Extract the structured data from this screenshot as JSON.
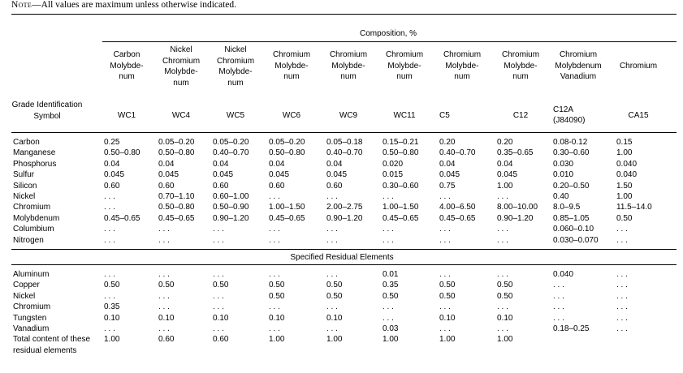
{
  "note": {
    "prefix": "Note",
    "text": "—All values are maximum unless otherwise indicated."
  },
  "composition_header": "Composition, %",
  "grade_label": "Grade Identification Symbol",
  "columns": [
    {
      "type": "Carbon Molybde-num",
      "grade": "WC1"
    },
    {
      "type": "Nickel Chromium Molybde-num",
      "grade": "WC4"
    },
    {
      "type": "Nickel Chromium Molybde-num",
      "grade": "WC5"
    },
    {
      "type": "Chromium Molybde-num",
      "grade": "WC6"
    },
    {
      "type": "Chromium Molybde-num",
      "grade": "WC9"
    },
    {
      "type": "Chromium Molybde-num",
      "grade": "WC11"
    },
    {
      "type": "Chromium Molybde-num",
      "grade": "C5"
    },
    {
      "type": "Chromium Molybde-num",
      "grade": "C12"
    },
    {
      "type": "Chromium Molybdenum Vanadium",
      "grade": "C12A (J84090)"
    },
    {
      "type": "Chromium",
      "grade": "CA15"
    }
  ],
  "elements": [
    {
      "name": "Carbon",
      "values": [
        "0.25",
        "0.05–0.20",
        "0.05–0.20",
        "0.05–0.20",
        "0.05–0.18",
        "0.15–0.21",
        "0.20",
        "0.20",
        "0.08-0.12",
        "0.15"
      ]
    },
    {
      "name": "Manganese",
      "values": [
        "0.50–0.80",
        "0.50–0.80",
        "0.40–0.70",
        "0.50–0.80",
        "0.40–0.70",
        "0.50–0.80",
        "0.40–0.70",
        "0.35–0.65",
        "0.30–0.60",
        "1.00"
      ]
    },
    {
      "name": "Phosphorus",
      "values": [
        "0.04",
        "0.04",
        "0.04",
        "0.04",
        "0.04",
        "0.020",
        "0.04",
        "0.04",
        "0.030",
        "0.040"
      ]
    },
    {
      "name": "Sulfur",
      "values": [
        "0.045",
        "0.045",
        "0.045",
        "0.045",
        "0.045",
        "0.015",
        "0.045",
        "0.045",
        "0.010",
        "0.040"
      ]
    },
    {
      "name": "Silicon",
      "values": [
        "0.60",
        "0.60",
        "0.60",
        "0.60",
        "0.60",
        "0.30–0.60",
        "0.75",
        "1.00",
        "0.20–0.50",
        "1.50"
      ]
    },
    {
      "name": "Nickel",
      "values": [
        ". . .",
        "0.70–1.10",
        "0.60–1.00",
        ". . .",
        ". . .",
        ". . .",
        ". . .",
        ". . .",
        "0.40",
        "1.00"
      ]
    },
    {
      "name": "Chromium",
      "values": [
        ". . .",
        "0.50–0.80",
        "0.50–0.90",
        "1.00–1.50",
        "2.00–2.75",
        "1.00–1.50",
        "4.00–6.50",
        "8.00–10.00",
        "8.0–9.5",
        "11.5–14.0"
      ]
    },
    {
      "name": "Molybdenum",
      "values": [
        "0.45–0.65",
        "0.45–0.65",
        "0.90–1.20",
        "0.45–0.65",
        "0.90–1.20",
        "0.45–0.65",
        "0.45–0.65",
        "0.90–1.20",
        "0.85–1.05",
        "0.50"
      ]
    },
    {
      "name": "Columbium",
      "values": [
        ". . .",
        ". . .",
        ". . .",
        ". . .",
        ". . .",
        ". . .",
        ". . .",
        ". . .",
        "0.060–0.10",
        ". . ."
      ]
    },
    {
      "name": "Nitrogen",
      "values": [
        ". . .",
        ". . .",
        ". . .",
        ". . .",
        ". . .",
        ". . .",
        ". . .",
        ". . .",
        "0.030–0.070",
        ". . ."
      ]
    }
  ],
  "residual_header": "Specified Residual Elements",
  "residuals": [
    {
      "name": "Aluminum",
      "values": [
        ". . .",
        ". . .",
        ". . .",
        ". . .",
        ". . .",
        "0.01",
        ". . .",
        ". . .",
        "0.040",
        ". . ."
      ]
    },
    {
      "name": "Copper",
      "values": [
        "0.50",
        "0.50",
        "0.50",
        "0.50",
        "0.50",
        "0.35",
        "0.50",
        "0.50",
        ". . .",
        ". . ."
      ]
    },
    {
      "name": "Nickel",
      "values": [
        ". . .",
        ". . .",
        ". . .",
        "0.50",
        "0.50",
        "0.50",
        "0.50",
        "0.50",
        ". . .",
        ". . ."
      ]
    },
    {
      "name": "Chromium",
      "values": [
        "0.35",
        ". . .",
        ". . .",
        ". . .",
        ". . .",
        ". . .",
        ". . .",
        ". . .",
        ". . .",
        ". . ."
      ]
    },
    {
      "name": "Tungsten",
      "values": [
        "0.10",
        "0.10",
        "0.10",
        "0.10",
        "0.10",
        ". . .",
        "0.10",
        "0.10",
        ". . .",
        ". . ."
      ]
    },
    {
      "name": "Vanadium",
      "values": [
        ". . .",
        ". . .",
        ". . .",
        ". . .",
        ". . .",
        "0.03",
        ". . .",
        ". . .",
        "0.18–0.25",
        ". . ."
      ]
    },
    {
      "name": "Total content of these residual elements",
      "values": [
        "1.00",
        "0.60",
        "0.60",
        "1.00",
        "1.00",
        "1.00",
        "1.00",
        "1.00",
        "",
        ""
      ]
    }
  ]
}
